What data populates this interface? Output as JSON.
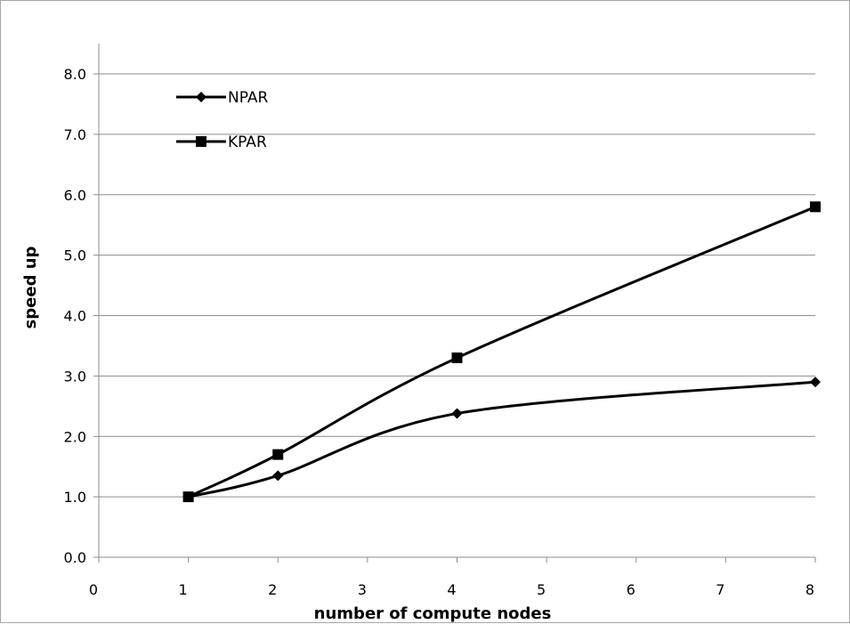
{
  "chart_data": {
    "type": "line",
    "title": "",
    "xlabel": "number of compute nodes",
    "ylabel": "speed up",
    "xlim": [
      0,
      8
    ],
    "ylim": [
      0,
      8.0
    ],
    "x_ticks": [
      "0",
      "1",
      "2",
      "3",
      "4",
      "5",
      "6",
      "7",
      "8"
    ],
    "y_ticks": [
      "0.0",
      "1.0",
      "2.0",
      "3.0",
      "4.0",
      "5.0",
      "6.0",
      "7.0",
      "8.0"
    ],
    "grid": "horizontal",
    "legend_position": "top-left",
    "smooth": true,
    "series": [
      {
        "name": "NPAR",
        "marker": "diamond",
        "color": "#000000",
        "x": [
          1,
          2,
          4,
          8
        ],
        "values": [
          1.0,
          1.35,
          2.38,
          2.9
        ]
      },
      {
        "name": "KPAR",
        "marker": "square",
        "color": "#000000",
        "x": [
          1,
          2,
          4,
          8
        ],
        "values": [
          1.0,
          1.7,
          3.3,
          5.8
        ]
      }
    ]
  }
}
